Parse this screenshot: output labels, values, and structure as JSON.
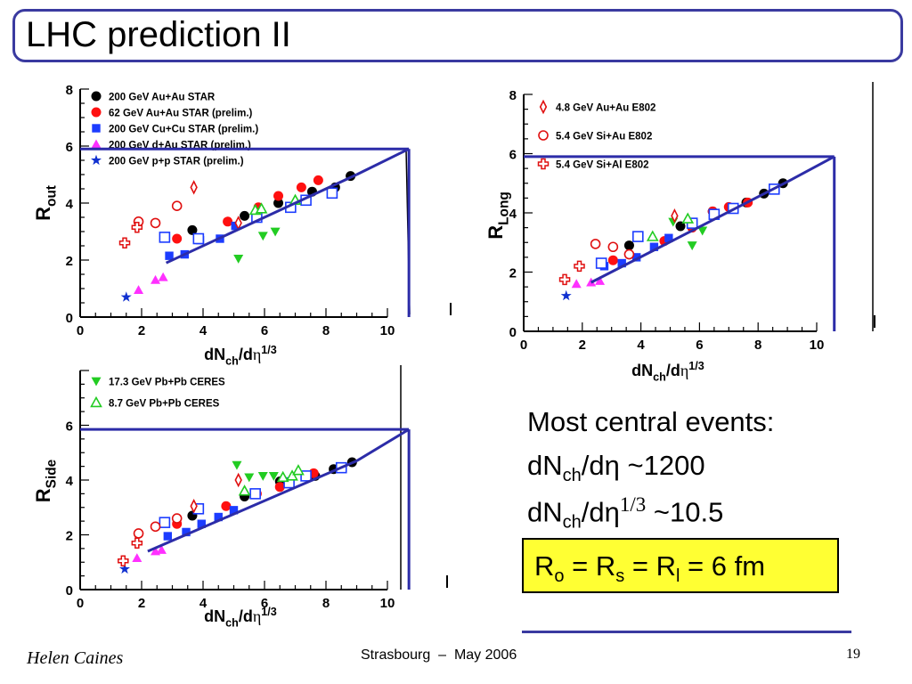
{
  "slide": {
    "title": "LHC prediction II",
    "text_lines": [
      {
        "pre": "Most central events:"
      },
      {
        "pre": "dN",
        "sub": "ch",
        "mid": "/d",
        "greek": "η",
        "sup": "",
        "post": " ~1200"
      },
      {
        "pre": "dN",
        "sub": "ch",
        "mid": "/d",
        "greek": "η",
        "sup": "1/3",
        "post": " ~10.5"
      }
    ],
    "result": {
      "r1": "R",
      "s1": "o",
      "eq1": " = R",
      "s2": "s",
      "eq2": " = R",
      "s3": "l",
      "eq3": " = 6 fm"
    },
    "footer": {
      "author": "Helen Caines",
      "event": "Strasbourg  –  May 2006",
      "page": "19"
    }
  },
  "colors": {
    "accent": "#2c2ca8",
    "star": "#000000",
    "prelim62": "#ff1010",
    "cucu": "#1c3cff",
    "dau": "#ff30ff",
    "pp": "#1030d0",
    "ceres17": "#22cc22",
    "ceres8": "#22cc22",
    "e802": "#e01010",
    "highlight": "#ffff33"
  },
  "chart_data": [
    {
      "type": "scatter",
      "xlabel": "dNch/dη1/3",
      "ylabel": "Rout",
      "xlabel_parts": {
        "base": "dN",
        "sub": "ch",
        "mid": "/d",
        "greek": "η",
        "sup": "1/3"
      },
      "ylabel_parts": {
        "base": "R",
        "sub": "out"
      },
      "xlim": [
        0,
        10
      ],
      "ylim": [
        0,
        8
      ],
      "xticks": [
        "0",
        "2",
        "4",
        "6",
        "8",
        "10"
      ],
      "yticks": [
        "0",
        "2",
        "4",
        "6",
        "8"
      ],
      "legend": [
        {
          "label": "200 GeV Au+Au STAR",
          "marker": "circle",
          "color": "#000000"
        },
        {
          "label": " 62 GeV Au+Au STAR (prelim.)",
          "marker": "circle",
          "color": "#ff1010"
        },
        {
          "label": "200 GeV Cu+Cu STAR (prelim.)",
          "marker": "square",
          "color": "#1c3cff"
        },
        {
          "label": "200 GeV d+Au STAR (prelim.)",
          "marker": "triangle",
          "color": "#ff30ff"
        },
        {
          "label": "200 GeV p+p STAR (prelim.)",
          "marker": "star",
          "color": "#1030d0"
        }
      ],
      "series": [
        {
          "name": "200 GeV Au+Au STAR",
          "marker": "circle",
          "color": "#000000",
          "x": [
            3.65,
            5.35,
            6.45,
            7.55,
            8.3,
            8.8
          ],
          "y": [
            3.05,
            3.55,
            4.0,
            4.4,
            4.55,
            4.95
          ]
        },
        {
          "name": " 62 GeV Au+Au STAR (prelim.)",
          "marker": "circle",
          "color": "#ff1010",
          "x": [
            3.15,
            4.8,
            5.8,
            6.45,
            7.2,
            7.75
          ],
          "y": [
            2.75,
            3.35,
            3.85,
            4.25,
            4.55,
            4.8
          ]
        },
        {
          "name": "200 GeV Cu+Cu STAR (prelim.)",
          "marker": "square",
          "color": "#1c3cff",
          "x": [
            2.9,
            3.4,
            3.9,
            4.55,
            5.05
          ],
          "y": [
            2.15,
            2.2,
            2.7,
            2.75,
            3.2
          ]
        },
        {
          "name": "200 GeV d+Au STAR (prelim.)",
          "marker": "triangle",
          "color": "#ff30ff",
          "x": [
            1.9,
            2.45,
            2.7
          ],
          "y": [
            0.95,
            1.3,
            1.4
          ]
        },
        {
          "name": "200 GeV p+p STAR (prelim.)",
          "marker": "star",
          "color": "#1030d0",
          "x": [
            1.5
          ],
          "y": [
            0.7
          ]
        },
        {
          "name": "Cu+Cu open",
          "marker": "open-square",
          "color": "#1c3cff",
          "x": [
            2.75,
            3.85,
            5.75,
            6.85,
            7.35,
            8.2
          ],
          "y": [
            2.8,
            2.75,
            3.5,
            3.85,
            4.1,
            4.35
          ]
        },
        {
          "name": "Pb+Pb 17.3 GeV",
          "marker": "down-triangle",
          "color": "#22cc22",
          "x": [
            5.15,
            5.95,
            6.35
          ],
          "y": [
            2.05,
            2.85,
            3.0
          ]
        },
        {
          "name": "Pb+Pb 8.7 GeV",
          "marker": "open-triangle",
          "color": "#22cc22",
          "x": [
            5.7,
            5.9,
            7.0
          ],
          "y": [
            3.75,
            3.8,
            4.1
          ]
        },
        {
          "name": "E802 Au+Au",
          "marker": "diamond",
          "color": "#e01010",
          "x": [
            3.7,
            5.15
          ],
          "y": [
            4.55,
            3.3
          ]
        },
        {
          "name": "E802 Si+Au",
          "marker": "open-circle",
          "color": "#e01010",
          "x": [
            1.9,
            2.45,
            3.15
          ],
          "y": [
            3.35,
            3.3,
            3.9
          ]
        },
        {
          "name": "E802 Si+Al",
          "marker": "cross",
          "color": "#e01010",
          "x": [
            1.45,
            1.85
          ],
          "y": [
            2.6,
            3.15
          ]
        }
      ],
      "fit_line": {
        "x": [
          2.8,
          9.0
        ],
        "y": [
          1.9,
          5.0
        ]
      },
      "projection": {
        "y": 5.9,
        "x": 10.7
      }
    },
    {
      "type": "scatter",
      "xlabel": "dNch/dη1/3",
      "ylabel": "RLong",
      "xlabel_parts": {
        "base": "dN",
        "sub": "ch",
        "mid": "/d",
        "greek": "η",
        "sup": "1/3"
      },
      "ylabel_parts": {
        "base": "R",
        "sub": "Long"
      },
      "xlim": [
        0,
        10
      ],
      "ylim": [
        0,
        8
      ],
      "xticks": [
        "0",
        "2",
        "4",
        "6",
        "8",
        "10"
      ],
      "yticks": [
        "0",
        "2",
        "4",
        "6",
        "8"
      ],
      "legend": [
        {
          "label": "4.8 GeV Au+Au E802",
          "marker": "diamond",
          "color": "#e01010"
        },
        {
          "label": "5.4 GeV Si+Au E802",
          "marker": "open-circle",
          "color": "#e01010"
        },
        {
          "label": "5.4 GeV Si+Al E802",
          "marker": "cross",
          "color": "#e01010"
        }
      ],
      "series": [
        {
          "name": "Au+Au 200",
          "marker": "circle",
          "color": "#000000",
          "x": [
            3.6,
            5.35,
            6.45,
            7.6,
            8.2,
            8.85
          ],
          "y": [
            2.9,
            3.55,
            4.05,
            4.35,
            4.65,
            5.0
          ]
        },
        {
          "name": "Au+Au 62",
          "marker": "circle",
          "color": "#ff1010",
          "x": [
            3.05,
            4.8,
            5.75,
            6.45,
            7.0,
            7.65
          ],
          "y": [
            2.4,
            3.05,
            3.5,
            4.05,
            4.2,
            4.35
          ]
        },
        {
          "name": "Cu+Cu",
          "marker": "square",
          "color": "#1c3cff",
          "x": [
            2.75,
            3.35,
            3.85,
            4.45,
            4.95
          ],
          "y": [
            2.2,
            2.3,
            2.5,
            2.85,
            3.15
          ]
        },
        {
          "name": "Cu+Cu open",
          "marker": "open-square",
          "color": "#1c3cff",
          "x": [
            2.65,
            3.9,
            5.75,
            6.5,
            7.15,
            8.55
          ],
          "y": [
            2.3,
            3.2,
            3.65,
            3.95,
            4.15,
            4.8
          ]
        },
        {
          "name": "d+Au",
          "marker": "triangle",
          "color": "#ff30ff",
          "x": [
            1.8,
            2.3,
            2.6
          ],
          "y": [
            1.6,
            1.65,
            1.7
          ]
        },
        {
          "name": "p+p",
          "marker": "star",
          "color": "#1030d0",
          "x": [
            1.45
          ],
          "y": [
            1.2
          ]
        },
        {
          "name": "CERES 17.3",
          "marker": "down-triangle",
          "color": "#22cc22",
          "x": [
            5.1,
            5.75,
            6.1
          ],
          "y": [
            3.7,
            2.9,
            3.4
          ]
        },
        {
          "name": "CERES 8.7",
          "marker": "open-triangle",
          "color": "#22cc22",
          "x": [
            4.4,
            5.6
          ],
          "y": [
            3.2,
            3.8
          ]
        },
        {
          "name": "E802 Au+Au",
          "marker": "diamond",
          "color": "#e01010",
          "x": [
            5.15
          ],
          "y": [
            3.9
          ]
        },
        {
          "name": "E802 Si+Au",
          "marker": "open-circle",
          "color": "#e01010",
          "x": [
            2.45,
            3.05,
            3.6
          ],
          "y": [
            2.95,
            2.85,
            2.6
          ]
        },
        {
          "name": "E802 Si+Al",
          "marker": "cross",
          "color": "#e01010",
          "x": [
            1.4,
            1.9
          ],
          "y": [
            1.75,
            2.2
          ]
        }
      ],
      "fit_line": {
        "x": [
          2.3,
          9.0
        ],
        "y": [
          1.65,
          5.05
        ]
      },
      "projection": {
        "y": 5.9,
        "x": 10.6
      }
    },
    {
      "type": "scatter",
      "xlabel": "dNch/dη1/3",
      "ylabel": "RSide",
      "xlabel_parts": {
        "base": "dN",
        "sub": "ch",
        "mid": "/d",
        "greek": "η",
        "sup": "1/3"
      },
      "ylabel_parts": {
        "base": "R",
        "sub": "Side"
      },
      "xlim": [
        0,
        10
      ],
      "ylim": [
        0,
        8
      ],
      "xticks": [
        "0",
        "2",
        "4",
        "6",
        "8",
        "10"
      ],
      "yticks": [
        "0",
        "2",
        "4",
        "6"
      ],
      "legend": [
        {
          "label": "17.3 GeV Pb+Pb CERES",
          "marker": "down-triangle",
          "color": "#22cc22"
        },
        {
          "label": "8.7 GeV Pb+Pb CERES",
          "marker": "open-triangle",
          "color": "#22cc22"
        }
      ],
      "series": [
        {
          "name": "Au+Au 200",
          "marker": "circle",
          "color": "#000000",
          "x": [
            3.65,
            5.35,
            6.5,
            7.65,
            8.25,
            8.85
          ],
          "y": [
            2.7,
            3.4,
            3.95,
            4.15,
            4.4,
            4.65
          ]
        },
        {
          "name": "Au+Au 62",
          "marker": "circle",
          "color": "#ff1010",
          "x": [
            3.15,
            4.75,
            5.75,
            6.5,
            7.6
          ],
          "y": [
            2.4,
            3.05,
            3.5,
            3.75,
            4.25
          ]
        },
        {
          "name": "Cu+Cu",
          "marker": "square",
          "color": "#1c3cff",
          "x": [
            2.85,
            3.45,
            3.95,
            4.5,
            5.0
          ],
          "y": [
            1.95,
            2.1,
            2.4,
            2.65,
            2.9
          ]
        },
        {
          "name": "Cu+Cu open",
          "marker": "open-square",
          "color": "#1c3cff",
          "x": [
            2.75,
            3.85,
            5.7,
            6.8,
            7.35,
            8.5
          ],
          "y": [
            2.45,
            2.95,
            3.5,
            3.9,
            4.15,
            4.45
          ]
        },
        {
          "name": "d+Au",
          "marker": "triangle",
          "color": "#ff30ff",
          "x": [
            1.85,
            2.45,
            2.65
          ],
          "y": [
            1.15,
            1.4,
            1.45
          ]
        },
        {
          "name": "p+p",
          "marker": "star",
          "color": "#1030d0",
          "x": [
            1.45
          ],
          "y": [
            0.75
          ]
        },
        {
          "name": "CERES 17.3",
          "marker": "down-triangle",
          "color": "#22cc22",
          "x": [
            5.1,
            5.5,
            5.95,
            6.3
          ],
          "y": [
            4.55,
            4.1,
            4.15,
            4.15
          ]
        },
        {
          "name": "CERES 8.7",
          "marker": "open-triangle",
          "color": "#22cc22",
          "x": [
            5.35,
            6.6,
            6.9,
            7.1
          ],
          "y": [
            3.6,
            4.1,
            4.15,
            4.35
          ]
        },
        {
          "name": "E802 Au+Au",
          "marker": "diamond",
          "color": "#e01010",
          "x": [
            3.7,
            5.15
          ],
          "y": [
            3.05,
            4.0
          ]
        },
        {
          "name": "E802 Si+Au",
          "marker": "open-circle",
          "color": "#e01010",
          "x": [
            1.9,
            2.45,
            3.15
          ],
          "y": [
            2.05,
            2.3,
            2.6
          ]
        },
        {
          "name": "E802 Si+Al",
          "marker": "cross",
          "color": "#e01010",
          "x": [
            1.4,
            1.85
          ],
          "y": [
            1.05,
            1.7
          ]
        }
      ],
      "fit_line": {
        "x": [
          2.2,
          9.0
        ],
        "y": [
          1.4,
          4.7
        ]
      },
      "projection": {
        "y": 5.85,
        "x": 10.7
      }
    }
  ]
}
